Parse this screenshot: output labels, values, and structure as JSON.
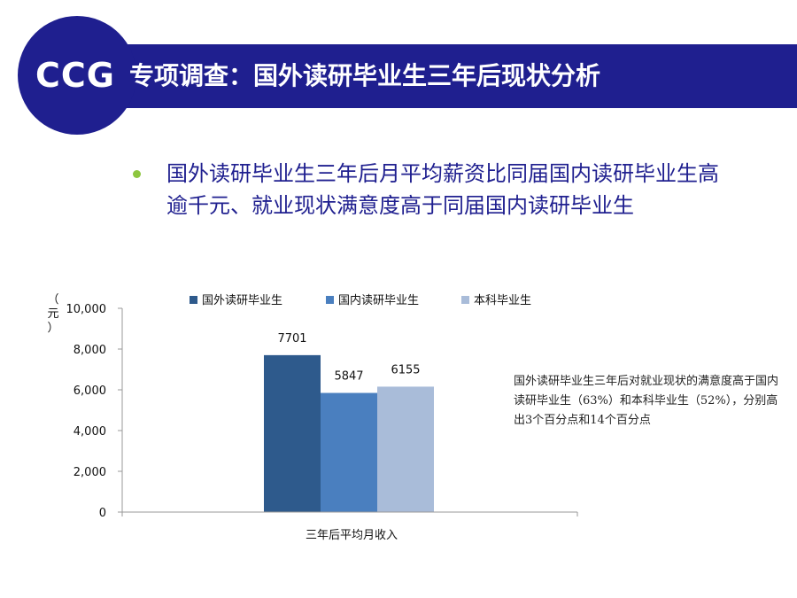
{
  "header": {
    "logo": "CCG",
    "title": "专项调查：国外读研毕业生三年后现状分析"
  },
  "bullet": {
    "text": "国外读研毕业生三年后月平均薪资比同届国内读研毕业生高逾千元、就业现状满意度高于同届国内读研毕业生"
  },
  "note": {
    "text": "国外读研毕业生三年后对就业现状的满意度高于国内读研毕业生（63%）和本科毕业生（52%），分别高出3个百分点和14个百分点"
  },
  "colors": {
    "banner": "#1f1f8f",
    "bullet_dot": "#8dc63f",
    "series": [
      "#2e5a8c",
      "#4a7fbf",
      "#a9bcd9"
    ]
  },
  "chart_data": {
    "type": "bar",
    "categories": [
      "三年后平均月收入"
    ],
    "series": [
      {
        "name": "国外读研毕业生",
        "values": [
          7701
        ]
      },
      {
        "name": "国内读研毕业生",
        "values": [
          5847
        ]
      },
      {
        "name": "本科毕业生",
        "values": [
          6155
        ]
      }
    ],
    "ylabel": "（元）",
    "ylabel_chars": [
      "（",
      "元",
      "）"
    ],
    "ylim": [
      0,
      10000
    ],
    "yticks": [
      0,
      2000,
      4000,
      6000,
      8000,
      10000
    ],
    "ytick_labels": [
      "0",
      "2,000",
      "4,000",
      "6,000",
      "8,000",
      "10,000"
    ],
    "data_labels": [
      "7701",
      "5847",
      "6155"
    ],
    "legend_position": "top",
    "grid": false
  }
}
